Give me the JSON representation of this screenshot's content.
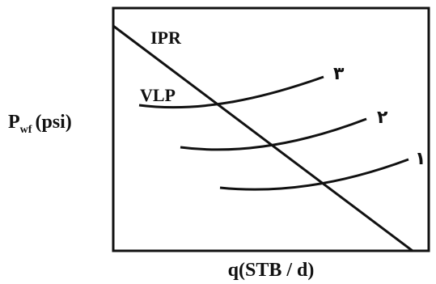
{
  "chart_data": {
    "type": "line",
    "xlabel": "q(STB / d)",
    "ylabel_main": "P",
    "ylabel_sub": "wf",
    "ylabel_unit": "(psi)",
    "ipr": {
      "label": "IPR"
    },
    "vlp": {
      "label": "VLP"
    },
    "curve_labels": [
      "٣",
      "٢",
      "١"
    ],
    "grid": false,
    "ticks": false
  }
}
